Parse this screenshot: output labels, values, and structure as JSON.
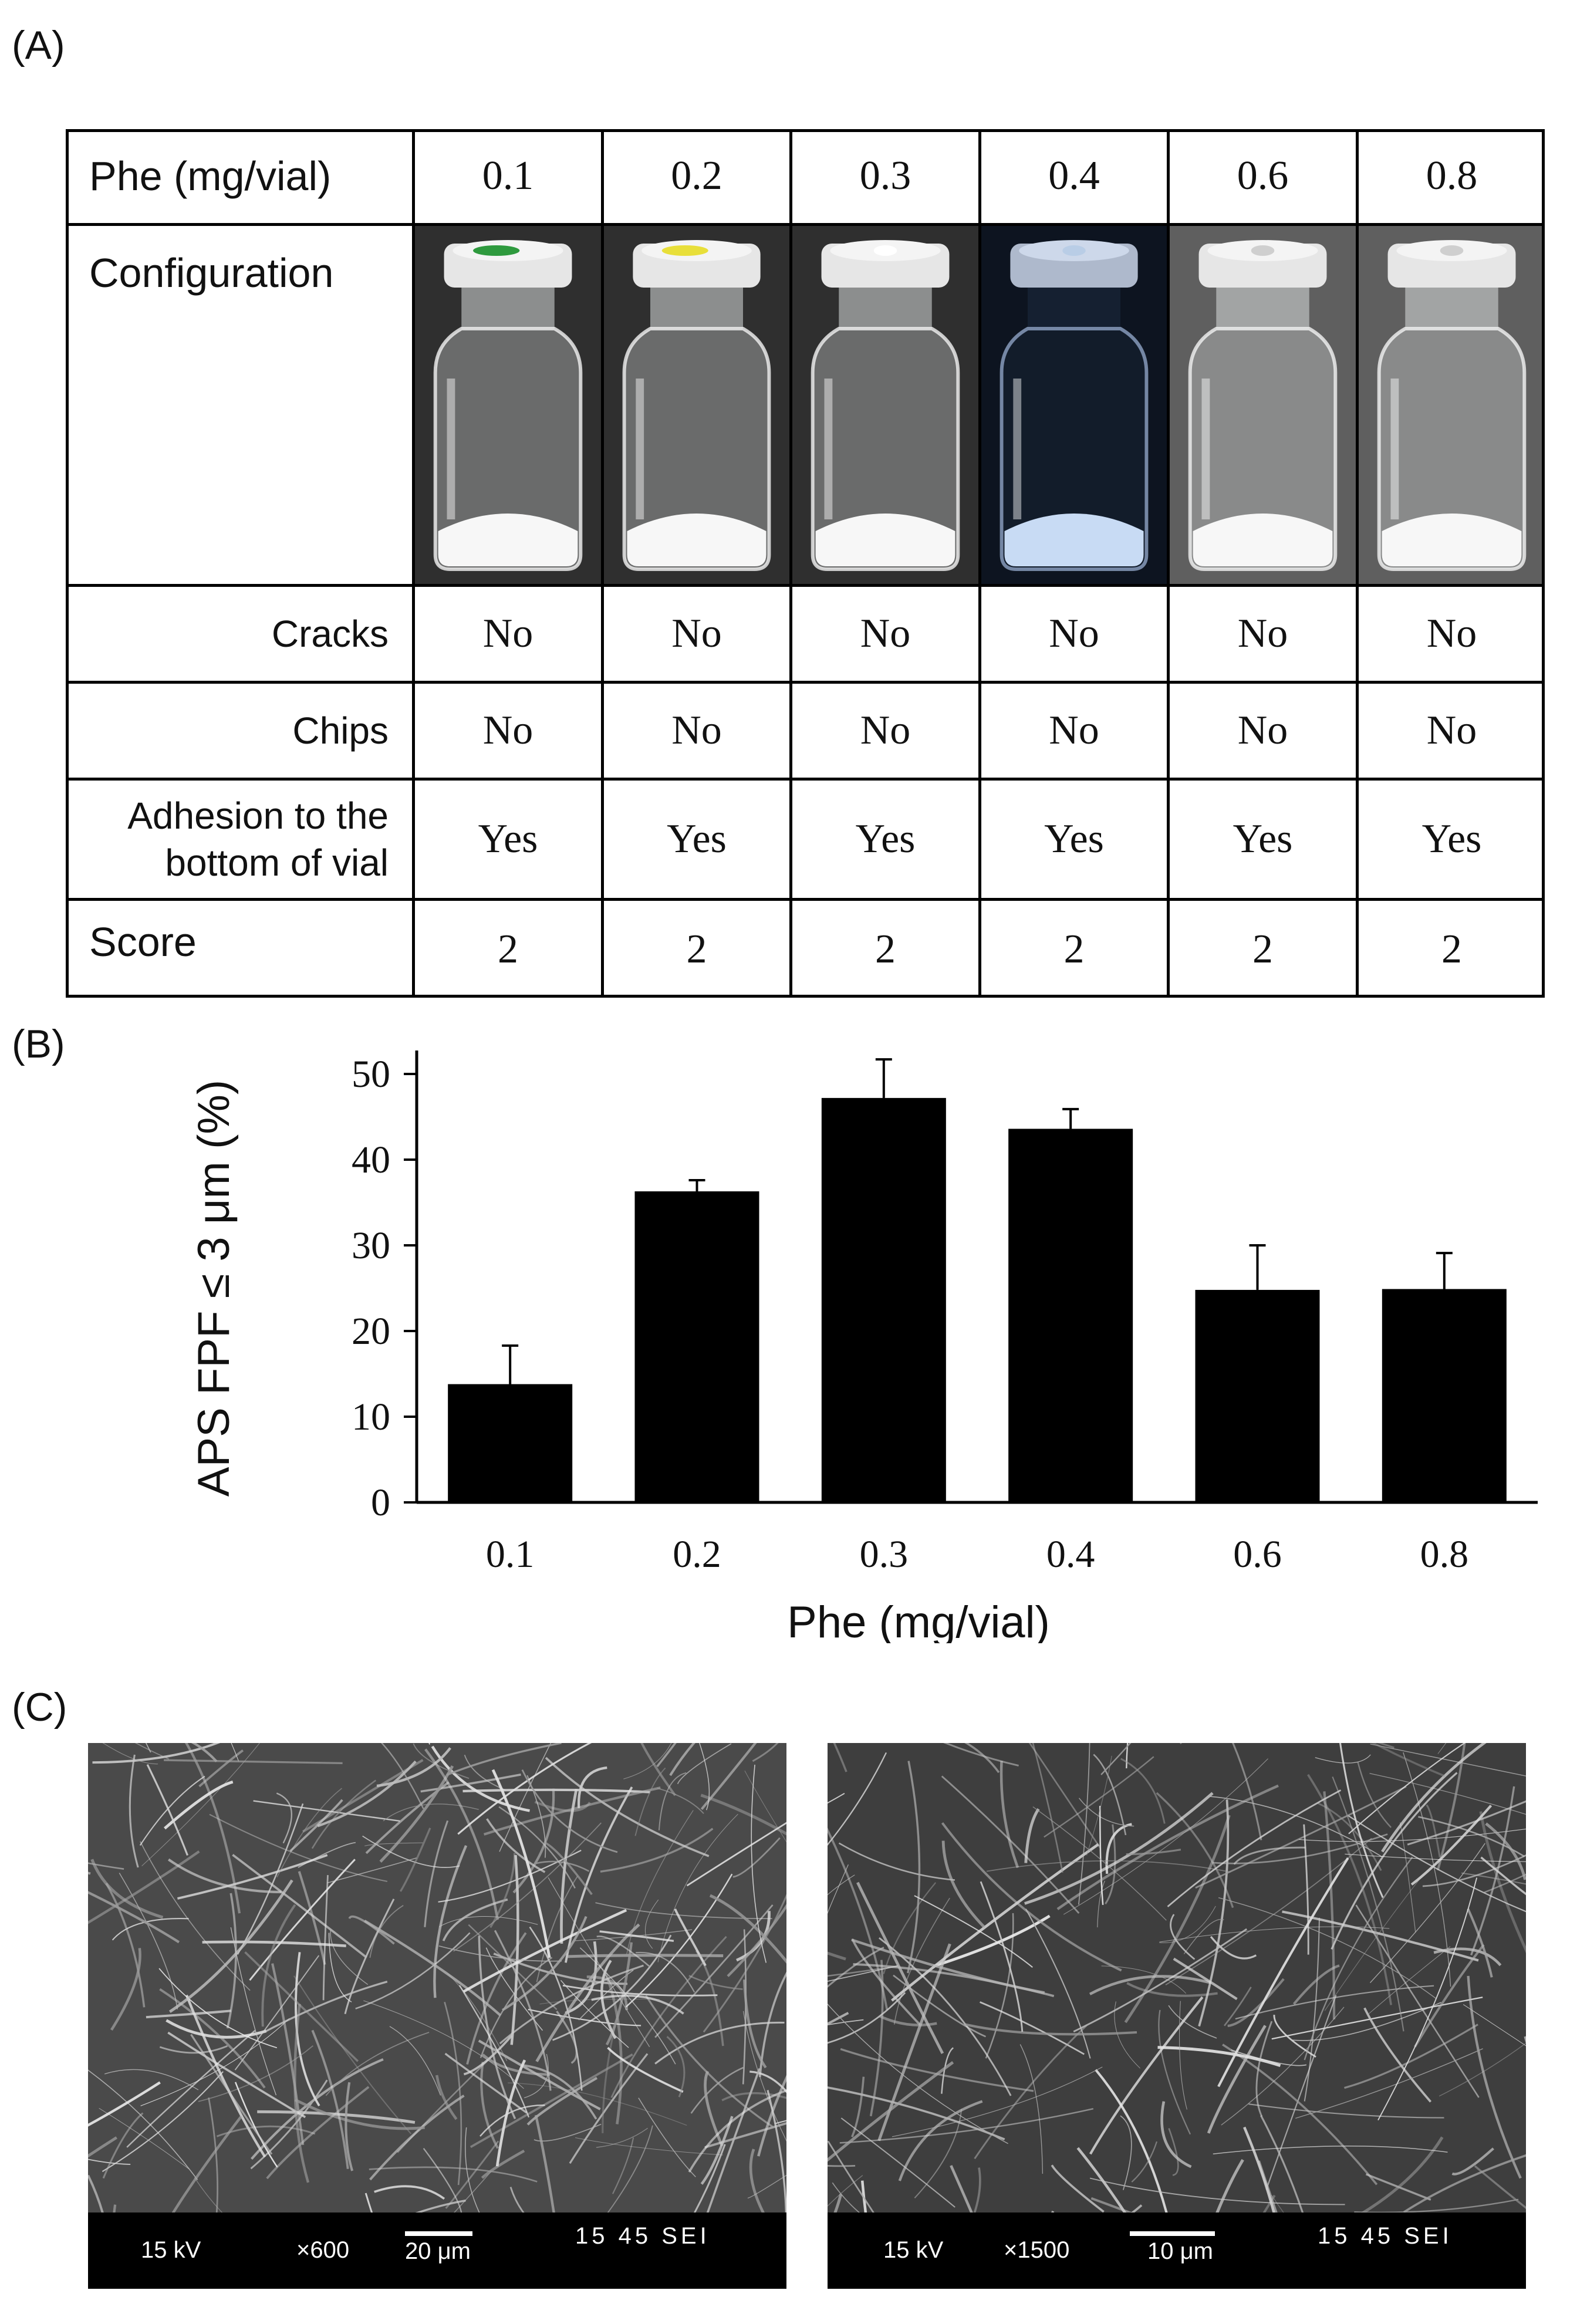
{
  "panel_a": {
    "label": "(A)",
    "header_label": "Phe (mg/vial)",
    "doses": [
      "0.1",
      "0.2",
      "0.3",
      "0.4",
      "0.6",
      "0.8"
    ],
    "rows": [
      {
        "key": "configuration",
        "label": "Configuration"
      },
      {
        "key": "cracks",
        "label": "Cracks",
        "values": [
          "No",
          "No",
          "No",
          "No",
          "No",
          "No"
        ]
      },
      {
        "key": "chips",
        "label": "Chips",
        "values": [
          "No",
          "No",
          "No",
          "No",
          "No",
          "No"
        ]
      },
      {
        "key": "adhesion",
        "label_line1": "Adhesion to the",
        "label_line2": "bottom of vial",
        "values": [
          "Yes",
          "Yes",
          "Yes",
          "Yes",
          "Yes",
          "Yes"
        ]
      },
      {
        "key": "score",
        "label": "Score",
        "values": [
          "2",
          "2",
          "2",
          "2",
          "2",
          "2"
        ]
      }
    ],
    "vial_cap_colors": [
      "#2e9a3e",
      "#e8df3a",
      "#ffffff",
      "#b9cde6",
      "#cfcfcf",
      "#cfcfcf"
    ]
  },
  "panel_b": {
    "label": "(B)",
    "chart_data": {
      "type": "bar",
      "categories": [
        "0.1",
        "0.2",
        "0.3",
        "0.4",
        "0.6",
        "0.8"
      ],
      "values": [
        13.8,
        36.3,
        47.2,
        43.6,
        24.8,
        24.9
      ],
      "error_plus": [
        4.5,
        1.3,
        4.5,
        2.3,
        5.2,
        4.2
      ],
      "xlabel": "Phe (mg/vial)",
      "ylabel": "APS FPF ≤ 3 μm (%)",
      "ylim": [
        0,
        50
      ],
      "yticks": [
        "0",
        "10",
        "20",
        "30",
        "40",
        "50"
      ],
      "grid": false,
      "bar_color": "#000000"
    }
  },
  "panel_c": {
    "label": "(C)",
    "images": [
      {
        "kv": "15 kV",
        "mag": "×600",
        "scale": "20 μm",
        "code": "15 45 SEI"
      },
      {
        "kv": "15 kV",
        "mag": "×1500",
        "scale": "10 μm",
        "code": "15 45 SEI"
      }
    ]
  }
}
